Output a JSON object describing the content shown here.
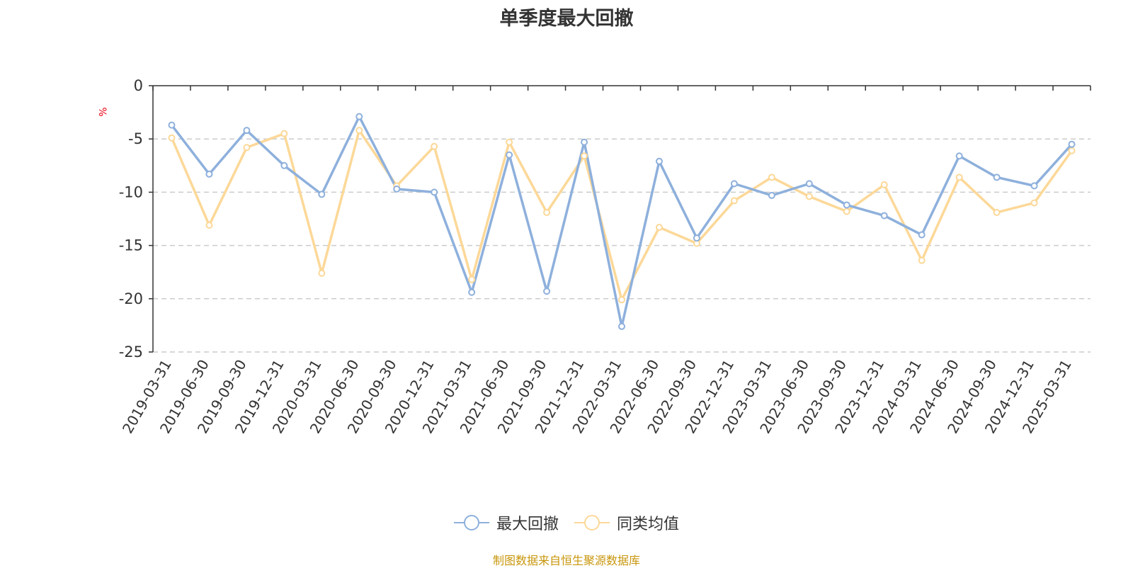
{
  "chart_data": {
    "type": "line",
    "title": "单季度最大回撤",
    "ylabel": "%",
    "ylim": [
      -25,
      0
    ],
    "yticks": [
      0,
      -5,
      -10,
      -15,
      -20,
      -25
    ],
    "grid": true,
    "legend_position": "bottom",
    "categories": [
      "2019-03-31",
      "2019-06-30",
      "2019-09-30",
      "2019-12-31",
      "2020-03-31",
      "2020-06-30",
      "2020-09-30",
      "2020-12-31",
      "2021-03-31",
      "2021-06-30",
      "2021-09-30",
      "2021-12-31",
      "2022-03-31",
      "2022-06-30",
      "2022-09-30",
      "2022-12-31",
      "2023-03-31",
      "2023-06-30",
      "2023-09-30",
      "2023-12-31",
      "2024-03-31",
      "2024-06-30",
      "2024-09-30",
      "2024-12-31",
      "2025-03-31"
    ],
    "series": [
      {
        "name": "最大回撤",
        "color": "#8eb0dc",
        "values": [
          -3.7,
          -8.3,
          -4.2,
          -7.5,
          -10.2,
          -2.9,
          -9.7,
          -10.0,
          -19.4,
          -6.5,
          -19.3,
          -5.3,
          -22.6,
          -7.1,
          -14.3,
          -9.2,
          -10.3,
          -9.2,
          -11.2,
          -12.2,
          -14.0,
          -6.6,
          -8.6,
          -9.4,
          -5.5
        ]
      },
      {
        "name": "同类均值",
        "color": "#fcd898",
        "values": [
          -4.9,
          -13.1,
          -5.8,
          -4.5,
          -17.6,
          -4.2,
          -9.4,
          -5.7,
          -18.2,
          -5.3,
          -11.9,
          -6.6,
          -20.1,
          -13.3,
          -14.8,
          -10.8,
          -8.6,
          -10.4,
          -11.8,
          -9.3,
          -16.4,
          -8.6,
          -11.9,
          -11.0,
          -6.1
        ]
      }
    ]
  },
  "source": "制图数据来自恒生聚源数据库"
}
